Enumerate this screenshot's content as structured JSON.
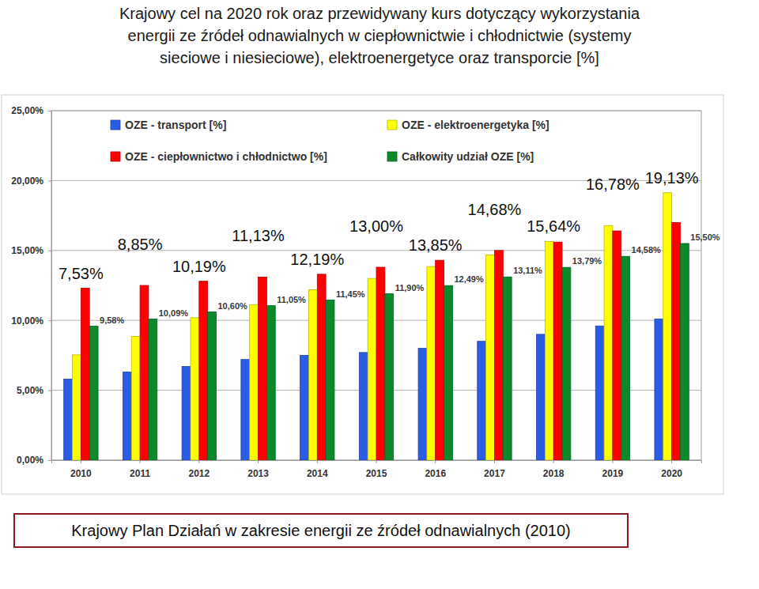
{
  "chart_data": {
    "type": "bar",
    "title": [
      "Krajowy cel na 2020 rok oraz przewidywany kurs dotyczący wykorzystania",
      "energii ze źródeł odnawialnych w ciepłownictwie i chłodnictwie (systemy",
      "sieciowe i niesieciowe), elektroenergetyce oraz transporcie [%]"
    ],
    "annotations": [
      "Krajowy Plan Działań w zakresie energii ze źródeł odnawialnych (2010)"
    ],
    "categories": [
      "2010",
      "2011",
      "2012",
      "2013",
      "2014",
      "2015",
      "2016",
      "2017",
      "2018",
      "2019",
      "2020"
    ],
    "ylim": [
      0,
      25
    ],
    "yticks": [
      {
        "value": 0,
        "label": "0,00%"
      },
      {
        "value": 5,
        "label": "5,00%"
      },
      {
        "value": 10,
        "label": "10,00%"
      },
      {
        "value": 15,
        "label": "15,00%"
      },
      {
        "value": 20,
        "label": "20,00%"
      },
      {
        "value": 25,
        "label": "25,00%"
      }
    ],
    "grid": true,
    "legend": "top",
    "series": [
      {
        "name": "OZE - transport [%]",
        "color": "#2a5ce6",
        "values": [
          5.8,
          6.3,
          6.7,
          7.2,
          7.5,
          7.7,
          8.0,
          8.5,
          9.0,
          9.6,
          10.1
        ]
      },
      {
        "name": "OZE - elektroenergetyka [%]",
        "color": "#ffff00",
        "values": [
          7.53,
          8.85,
          10.19,
          11.13,
          12.19,
          13.0,
          13.85,
          14.68,
          15.64,
          16.78,
          19.13
        ],
        "data_labels": true,
        "value_labels": [
          "7,53%",
          "8,85%",
          "10,19%",
          "11,13%",
          "12,19%",
          "13,00%",
          "13,85%",
          "14,68%",
          "15,64%",
          "16,78%",
          "19,13%"
        ]
      },
      {
        "name": "OZE - ciepłownictwo i chłodnictwo [%]",
        "color": "#ff0000",
        "values": [
          12.3,
          12.5,
          12.8,
          13.1,
          13.3,
          13.8,
          14.3,
          15.0,
          15.6,
          16.4,
          17.0
        ]
      },
      {
        "name": "Całkowity udział OZE [%]",
        "color": "#0a8a2a",
        "values": [
          9.58,
          10.09,
          10.6,
          11.05,
          11.45,
          11.9,
          12.49,
          13.11,
          13.79,
          14.58,
          15.5
        ],
        "data_labels": true,
        "value_labels": [
          "9,58%",
          "10,09%",
          "10,60%",
          "11,05%",
          "11,45%",
          "11,90%",
          "12,49%",
          "13,11%",
          "13,79%",
          "14,58%",
          "15,50%"
        ]
      }
    ]
  }
}
